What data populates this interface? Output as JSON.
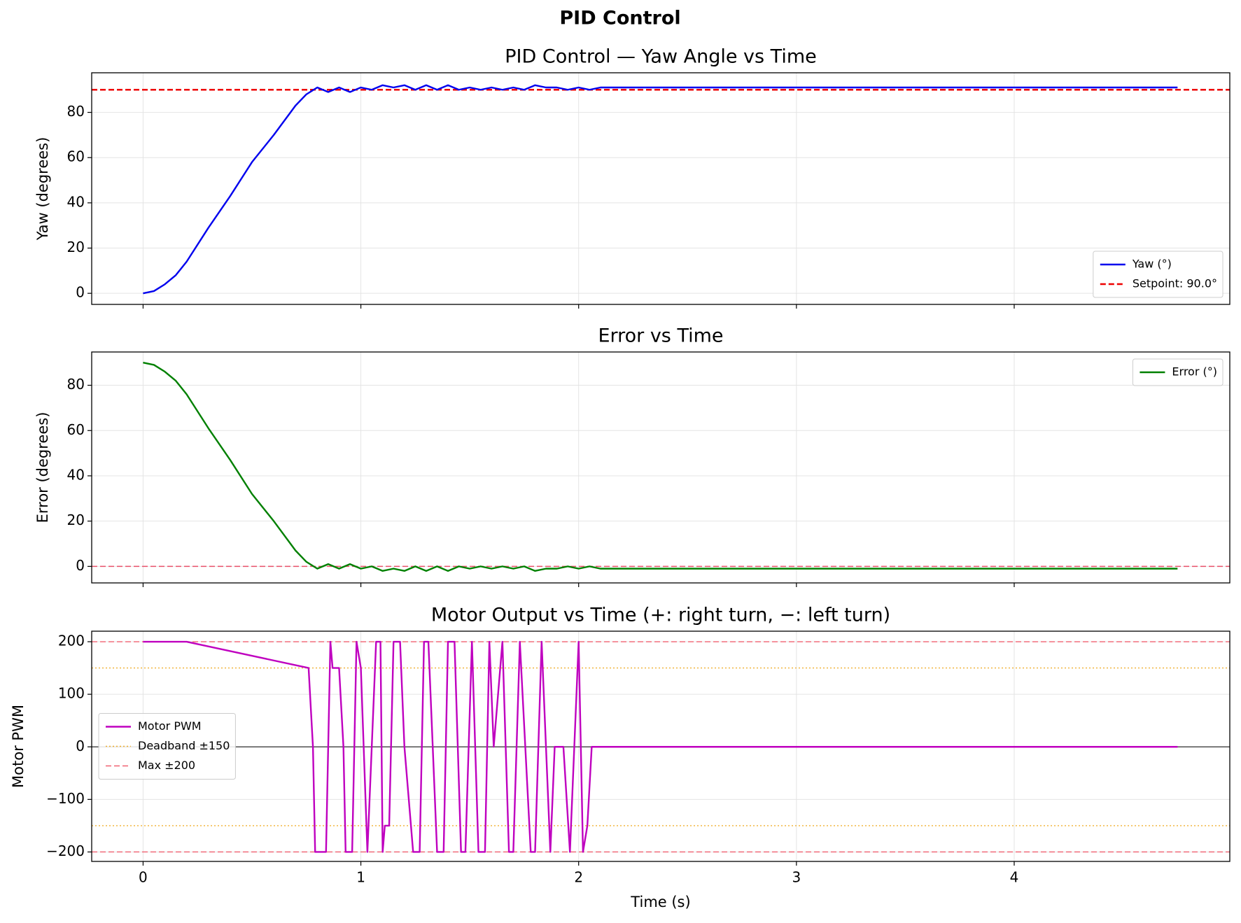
{
  "title": "PID Control",
  "chart_data": [
    {
      "type": "line",
      "title": "PID Control — Yaw Angle vs Time",
      "ylabel": "Yaw (degrees)",
      "xlim": [
        -0.236,
        4.99
      ],
      "xticks": [
        0,
        1,
        2,
        3,
        4
      ],
      "ylim": [
        -4.9,
        97.5
      ],
      "yticks": [
        0,
        20,
        40,
        60,
        80
      ],
      "grid": true,
      "legend": "lower right",
      "x": [
        0,
        0.05,
        0.1,
        0.15,
        0.2,
        0.3,
        0.4,
        0.5,
        0.6,
        0.7,
        0.75,
        0.8,
        0.85,
        0.9,
        0.95,
        1.0,
        1.05,
        1.1,
        1.15,
        1.2,
        1.25,
        1.3,
        1.35,
        1.4,
        1.45,
        1.5,
        1.55,
        1.6,
        1.65,
        1.7,
        1.75,
        1.8,
        1.85,
        1.9,
        1.95,
        2.0,
        2.05,
        2.1,
        2.5,
        3.0,
        3.5,
        4.0,
        4.5,
        4.75
      ],
      "series": [
        {
          "name": "Yaw (°)",
          "color": "#0000ee",
          "values": [
            0,
            1,
            4,
            8,
            14,
            29,
            43,
            58,
            70,
            83,
            88,
            91,
            89,
            91,
            89,
            91,
            90,
            92,
            91,
            92,
            90,
            92,
            90,
            92,
            90,
            91,
            90,
            91,
            90,
            91,
            90,
            92,
            91,
            91,
            90,
            91,
            90,
            91,
            91,
            91,
            91,
            91,
            91,
            91
          ]
        }
      ],
      "hlines": [
        {
          "name": "Setpoint: 90.0°",
          "values": [
            90
          ],
          "color": "#ee0000",
          "style": "dashed",
          "width": 2.6
        }
      ]
    },
    {
      "type": "line",
      "title": "Error vs Time",
      "ylabel": "Error (degrees)",
      "xlim": [
        -0.236,
        4.99
      ],
      "xticks": [
        0,
        1,
        2,
        3,
        4
      ],
      "ylim": [
        -7.3,
        94.7
      ],
      "yticks": [
        0,
        20,
        40,
        60,
        80
      ],
      "grid": true,
      "legend": "upper right",
      "x": [
        0,
        0.05,
        0.1,
        0.15,
        0.2,
        0.3,
        0.4,
        0.5,
        0.6,
        0.7,
        0.75,
        0.8,
        0.85,
        0.9,
        0.95,
        1.0,
        1.05,
        1.1,
        1.15,
        1.2,
        1.25,
        1.3,
        1.35,
        1.4,
        1.45,
        1.5,
        1.55,
        1.6,
        1.65,
        1.7,
        1.75,
        1.8,
        1.85,
        1.9,
        1.95,
        2.0,
        2.05,
        2.1,
        2.5,
        3.0,
        3.5,
        4.0,
        4.5,
        4.75
      ],
      "series": [
        {
          "name": "Error (°)",
          "color": "#008000",
          "values": [
            90,
            89,
            86,
            82,
            76,
            61,
            47,
            32,
            20,
            7,
            2,
            -1,
            1,
            -1,
            1,
            -1,
            0,
            -2,
            -1,
            -2,
            0,
            -2,
            0,
            -2,
            0,
            -1,
            0,
            -1,
            0,
            -1,
            0,
            -2,
            -1,
            -1,
            0,
            -1,
            0,
            -1,
            -1,
            -1,
            -1,
            -1,
            -1,
            -1
          ]
        }
      ],
      "hlines": [
        {
          "values": [
            0
          ],
          "color": "#e8506a",
          "style": "dashed",
          "width": 1.4
        }
      ]
    },
    {
      "type": "line",
      "title": "Motor Output vs Time  (+: right turn, −: left turn)",
      "ylabel": "Motor PWM",
      "xlabel": "Time (s)",
      "xlim": [
        -0.236,
        4.99
      ],
      "xticks": [
        0,
        1,
        2,
        3,
        4
      ],
      "ylim": [
        -218,
        220
      ],
      "yticks": [
        {
          "value": -200,
          "label": "−200"
        },
        {
          "value": -100,
          "label": "−100"
        },
        0,
        100,
        200
      ],
      "grid": true,
      "legend": "center left",
      "x": [
        0,
        0.2,
        0.76,
        0.78,
        0.79,
        0.84,
        0.86,
        0.87,
        0.9,
        0.92,
        0.93,
        0.96,
        0.98,
        1.0,
        1.03,
        1.07,
        1.09,
        1.1,
        1.11,
        1.13,
        1.15,
        1.18,
        1.2,
        1.24,
        1.27,
        1.29,
        1.31,
        1.35,
        1.38,
        1.4,
        1.43,
        1.46,
        1.48,
        1.51,
        1.54,
        1.57,
        1.59,
        1.61,
        1.65,
        1.68,
        1.7,
        1.73,
        1.78,
        1.8,
        1.83,
        1.87,
        1.89,
        1.93,
        1.96,
        1.98,
        2.0,
        2.02,
        2.04,
        2.06,
        4.75
      ],
      "series": [
        {
          "name": "Motor PWM",
          "color": "#bf00bf",
          "values": [
            200,
            200,
            150,
            0,
            -200,
            -200,
            200,
            150,
            150,
            0,
            -200,
            -200,
            200,
            150,
            -200,
            200,
            200,
            -200,
            -150,
            -150,
            200,
            200,
            0,
            -200,
            -200,
            200,
            200,
            -200,
            -200,
            200,
            200,
            -200,
            -200,
            200,
            -200,
            -200,
            200,
            0,
            200,
            -200,
            -200,
            200,
            -200,
            -200,
            200,
            -200,
            0,
            0,
            -200,
            0,
            200,
            -200,
            -150,
            0,
            0
          ]
        }
      ],
      "hlines": [
        {
          "name": "Deadband ±150",
          "values": [
            150,
            -150
          ],
          "color": "#f0b030",
          "style": "dotted",
          "width": 1.4
        },
        {
          "name": "Max ±200",
          "values": [
            200,
            -200
          ],
          "color": "#f06070",
          "style": "dashed",
          "width": 1.4
        },
        {
          "values": [
            0
          ],
          "color": "#000000",
          "style": "solid",
          "width": 1
        }
      ]
    }
  ]
}
